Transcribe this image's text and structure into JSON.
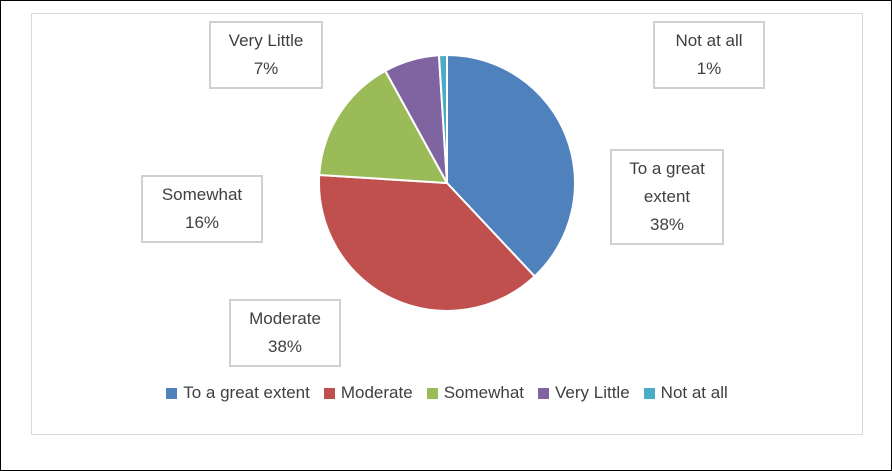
{
  "chart_data": {
    "type": "pie",
    "categories": [
      "To a great extent",
      "Moderate",
      "Somewhat",
      "Very Little",
      "Not at all"
    ],
    "values": [
      38,
      38,
      16,
      7,
      1
    ],
    "value_labels": [
      "38%",
      "38%",
      "16%",
      "7%",
      "1%"
    ],
    "colors": [
      "#4f81bd",
      "#c0504d",
      "#9bbb59",
      "#8064a2",
      "#4bacc6"
    ]
  }
}
